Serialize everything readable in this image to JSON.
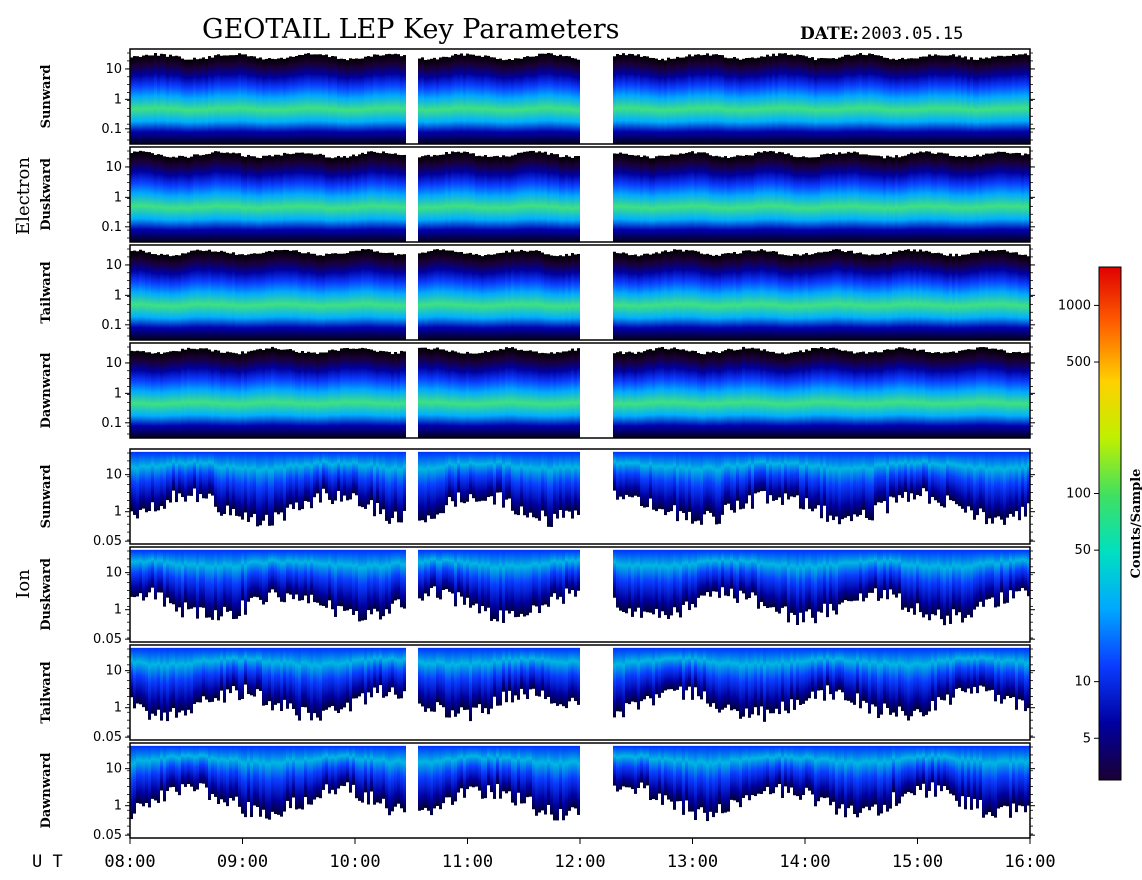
{
  "header": {
    "title": "GEOTAIL LEP Key Parameters",
    "date_label": "DATE:",
    "date_value": "2003.05.15"
  },
  "colors": {
    "frame": "#000000",
    "background": "#ffffff",
    "colormap": [
      "#1a0033",
      "#0000a0",
      "#0a3cff",
      "#00a8ff",
      "#00e0c0",
      "#40e060",
      "#c0f000",
      "#ffd000",
      "#ff6000",
      "#e00000"
    ]
  },
  "chart_data": {
    "type": "heatmap",
    "x_axis": {
      "prefix": "U T",
      "range": [
        "08:00",
        "16:00"
      ],
      "ticks": [
        "08:00",
        "09:00",
        "10:00",
        "11:00",
        "12:00",
        "13:00",
        "14:00",
        "15:00",
        "16:00"
      ]
    },
    "groups": [
      {
        "label": "Electron",
        "panels": [
          "Sunward",
          "Duskward",
          "Tailward",
          "Dawnward"
        ],
        "y_ticks": [
          "10",
          "1",
          "0.1"
        ],
        "y_scale": "log"
      },
      {
        "label": "Ion",
        "panels": [
          "Sunward",
          "Duskward",
          "Tailward",
          "Dawnward"
        ],
        "y_ticks": [
          "10",
          "1",
          "0.05"
        ],
        "y_scale": "log"
      }
    ],
    "data_gaps": [
      [
        "10:27",
        "10:32"
      ],
      [
        "12:00",
        "12:16"
      ]
    ],
    "colorbar": {
      "label": "Counts/Sample",
      "scale": "log",
      "range": [
        3,
        1600
      ],
      "ticks": [
        "1000",
        "500",
        "100",
        "50",
        "10",
        "5"
      ]
    }
  }
}
